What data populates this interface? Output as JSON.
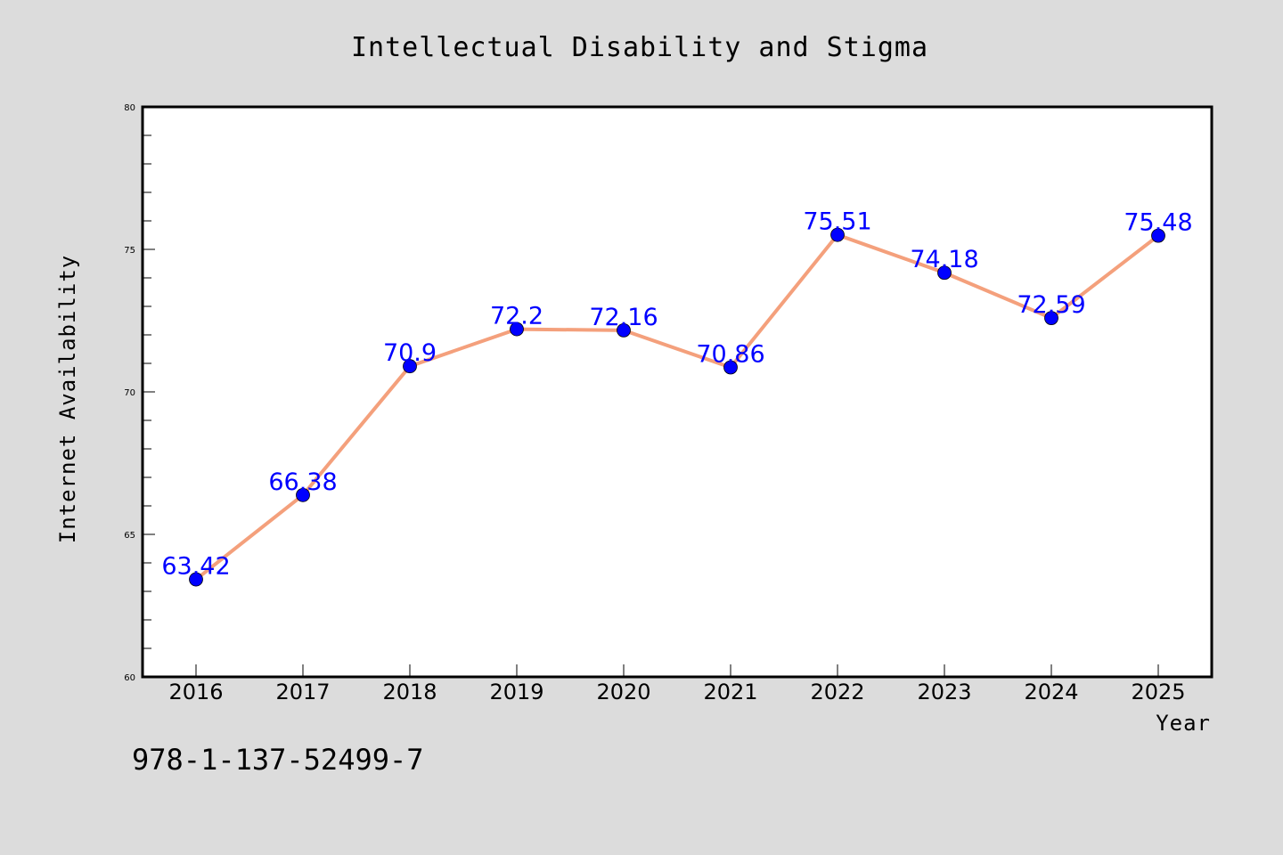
{
  "chart_data": {
    "type": "line",
    "title": "Intellectual Disability and Stigma",
    "xlabel": "Year",
    "ylabel": "Internet Availability",
    "categories": [
      "2016",
      "2017",
      "2018",
      "2019",
      "2020",
      "2021",
      "2022",
      "2023",
      "2024",
      "2025"
    ],
    "series": [
      {
        "values": [
          63.42,
          66.38,
          70.9,
          72.2,
          72.16,
          70.86,
          75.51,
          74.18,
          72.59,
          75.48
        ],
        "labels": [
          "63.42",
          "66.38",
          "70.9",
          "72.2",
          "72.16",
          "70.86",
          "75.51",
          "74.18",
          "72.59",
          "75.48"
        ],
        "line_color": "#f4a07c",
        "marker_color": "#0000ff"
      }
    ],
    "ylim": [
      60,
      80
    ],
    "yticks": [
      60,
      65,
      70,
      75,
      80
    ],
    "ytick_labels": [
      "60",
      "65",
      "70",
      "75",
      "80"
    ],
    "grid": false,
    "legend": "none"
  },
  "annotation": {
    "isbn": "978-1-137-52499-7"
  },
  "colors": {
    "figure_background": "#dcdcdc",
    "plot_background": "#ffffff",
    "line": "#f4a07c",
    "marker": "#0000ff",
    "data_label": "#0000ff"
  }
}
